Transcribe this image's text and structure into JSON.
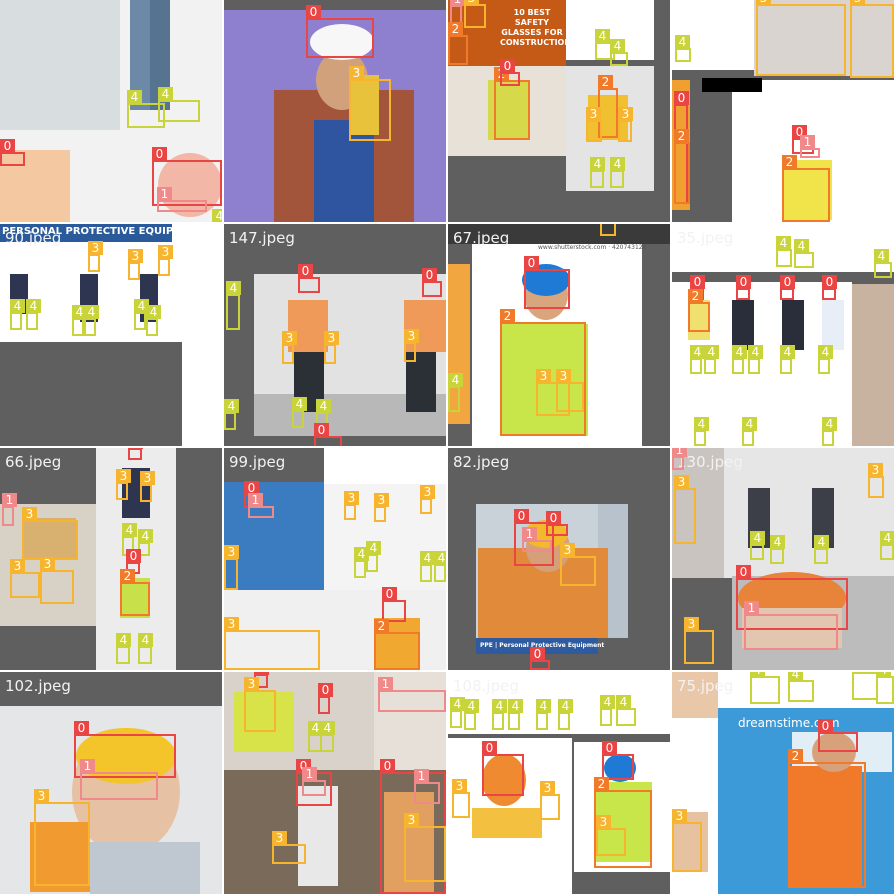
{
  "mosaic": {
    "title": "",
    "class_colors": {
      "0": "#e94545",
      "1": "#f08a8a",
      "2": "#f07a2a",
      "3": "#f7b52f",
      "4": "#c9d43a"
    },
    "captions": [
      "",
      "",
      "",
      "",
      "90.jpeg",
      "147.jpeg",
      "67.jpeg",
      "35.jpeg",
      "66.jpeg",
      "99.jpeg",
      "82.jpeg",
      "130.jpeg",
      "102.jpeg",
      "",
      "108.jpeg",
      "75.jpeg"
    ],
    "banners": {
      "ppe_title": "PERSONAL PROTECTIVE EQUIPMENT",
      "glasses_title": "10 BEST SAFETY GLASSES FOR CONSTRUCTION",
      "ppe_strip": "PPE | Personal Protective Equipment",
      "watermark_shutter": "www.shutterstock.com · 420743128",
      "watermark_dreams": "dreamstime.com"
    }
  }
}
